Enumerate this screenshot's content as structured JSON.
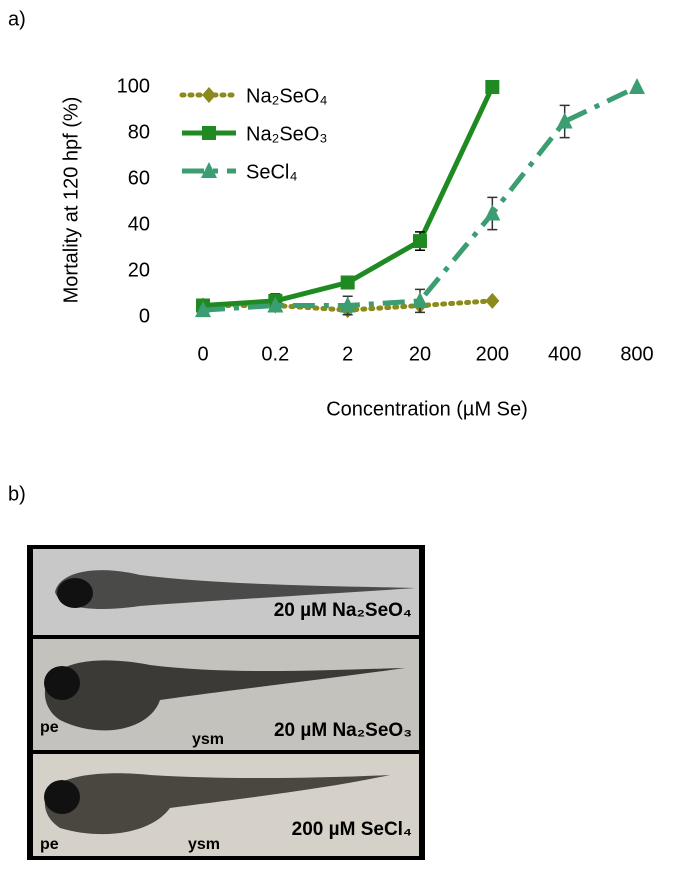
{
  "chart_data": {
    "type": "line",
    "panel_label": "a)",
    "xlabel": "Concentration (µM Se)",
    "ylabel": "Mortality at 120 hpf (%)",
    "categories": [
      "0",
      "0.2",
      "2",
      "20",
      "200",
      "400",
      "800"
    ],
    "ylim": [
      0,
      100
    ],
    "yticks": [
      0,
      20,
      40,
      60,
      80,
      100
    ],
    "grid": false,
    "legend": "upper left",
    "series": [
      {
        "name": "Na₂SeO₄",
        "color": "#8c8a1c",
        "dash": "dotted",
        "marker": "diamond",
        "values": [
          5,
          5,
          3,
          5,
          7,
          null,
          null
        ],
        "errors": [
          null,
          null,
          null,
          null,
          null,
          null,
          null
        ]
      },
      {
        "name": "Na₂SeO₃",
        "color": "#1f8a22",
        "dash": "solid",
        "marker": "square",
        "values": [
          5,
          7,
          15,
          33,
          100,
          null,
          null
        ],
        "errors": [
          null,
          3,
          null,
          4,
          null,
          null,
          null
        ]
      },
      {
        "name": "SeCl₄",
        "color": "#3b9e72",
        "dash": "dashdot",
        "marker": "triangle",
        "values": [
          3,
          5,
          5,
          7,
          45,
          85,
          100
        ],
        "errors": [
          null,
          null,
          4,
          5,
          7,
          7,
          null
        ]
      }
    ]
  },
  "panel_b": {
    "label": "b)",
    "images": [
      {
        "caption": "20 µM Na₂SeO₄"
      },
      {
        "caption": "20 µM Na₂SeO₃",
        "marks": [
          "pe",
          "ysm"
        ]
      },
      {
        "caption": "200 µM SeCl₄",
        "marks": [
          "pe",
          "ysm"
        ]
      }
    ]
  }
}
